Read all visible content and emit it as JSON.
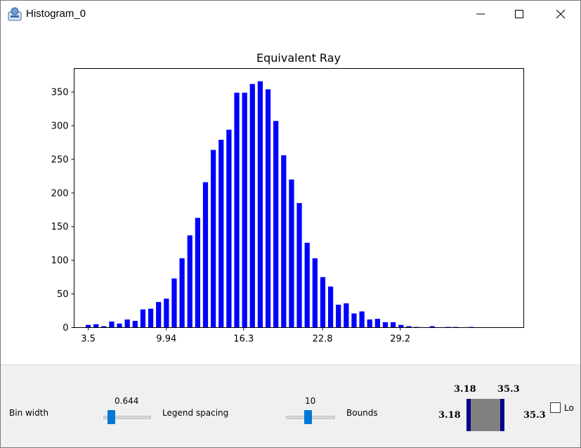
{
  "window": {
    "title": "Histogram_0",
    "minimize_icon": "minimize-icon",
    "maximize_icon": "maximize-icon",
    "close_icon": "close-icon"
  },
  "chart_data": {
    "type": "bar",
    "title": "Equivalent Ray",
    "xlabel": "",
    "ylabel": "",
    "bar_color": "#0000ff",
    "xlim": [
      2.34,
      39.37
    ],
    "ylim": [
      0,
      385
    ],
    "x_ticks": [
      3.5,
      9.94,
      16.3,
      22.8,
      29.2
    ],
    "x_tick_labels": [
      "3.5",
      "9.94",
      "16.3",
      "22.8",
      "29.2"
    ],
    "y_ticks": [
      0,
      50,
      100,
      150,
      200,
      250,
      300,
      350
    ],
    "grid": false,
    "bin_width": 0.644,
    "x": [
      3.5,
      4.144,
      4.788,
      5.432,
      6.076,
      6.72,
      7.364,
      8.008,
      8.652,
      9.296,
      9.94,
      10.584,
      11.228,
      11.872,
      12.516,
      13.16,
      13.804,
      14.448,
      15.092,
      15.736,
      16.38,
      17.024,
      17.668,
      18.312,
      18.956,
      19.6,
      20.244,
      20.888,
      21.532,
      22.176,
      22.82,
      23.464,
      24.108,
      24.752,
      25.396,
      26.04,
      26.684,
      27.328,
      27.972,
      28.616,
      29.26,
      29.904,
      30.548,
      31.192,
      31.836,
      32.48,
      33.124,
      33.768,
      34.412,
      35.056,
      35.7
    ],
    "values": [
      4,
      5,
      2,
      9,
      6,
      12,
      10,
      27,
      28,
      38,
      43,
      73,
      103,
      137,
      163,
      216,
      264,
      279,
      294,
      349,
      349,
      362,
      366,
      354,
      307,
      256,
      220,
      185,
      126,
      103,
      75,
      61,
      34,
      36,
      21,
      24,
      12,
      13,
      8,
      8,
      4,
      2,
      1,
      0,
      2,
      0,
      1,
      1,
      0,
      1,
      0
    ]
  },
  "controls": {
    "bin_width": {
      "label": "Bin width",
      "value": "0.644",
      "fraction": 0.1
    },
    "legend_spacing": {
      "label": "Legend spacing",
      "value": "10",
      "fraction": 0.45
    },
    "bounds": {
      "label": "Bounds",
      "low_top": "3.18",
      "high_top": "35.3",
      "low_left": "3.18",
      "high_right": "35.3"
    },
    "checkbox": {
      "label": "Lo",
      "checked": false
    }
  }
}
